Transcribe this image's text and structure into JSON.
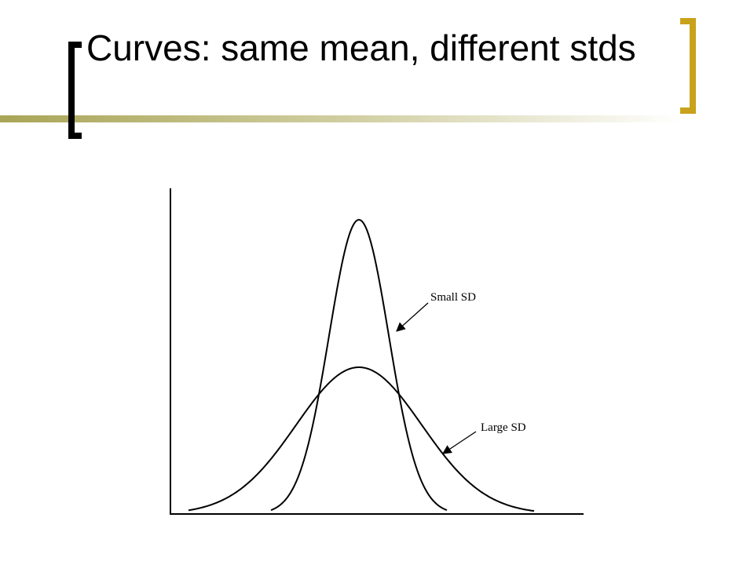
{
  "slide": {
    "title": "Curves: same mean, different stds",
    "annotations": [
      "Small SD",
      "Large SD"
    ]
  }
}
